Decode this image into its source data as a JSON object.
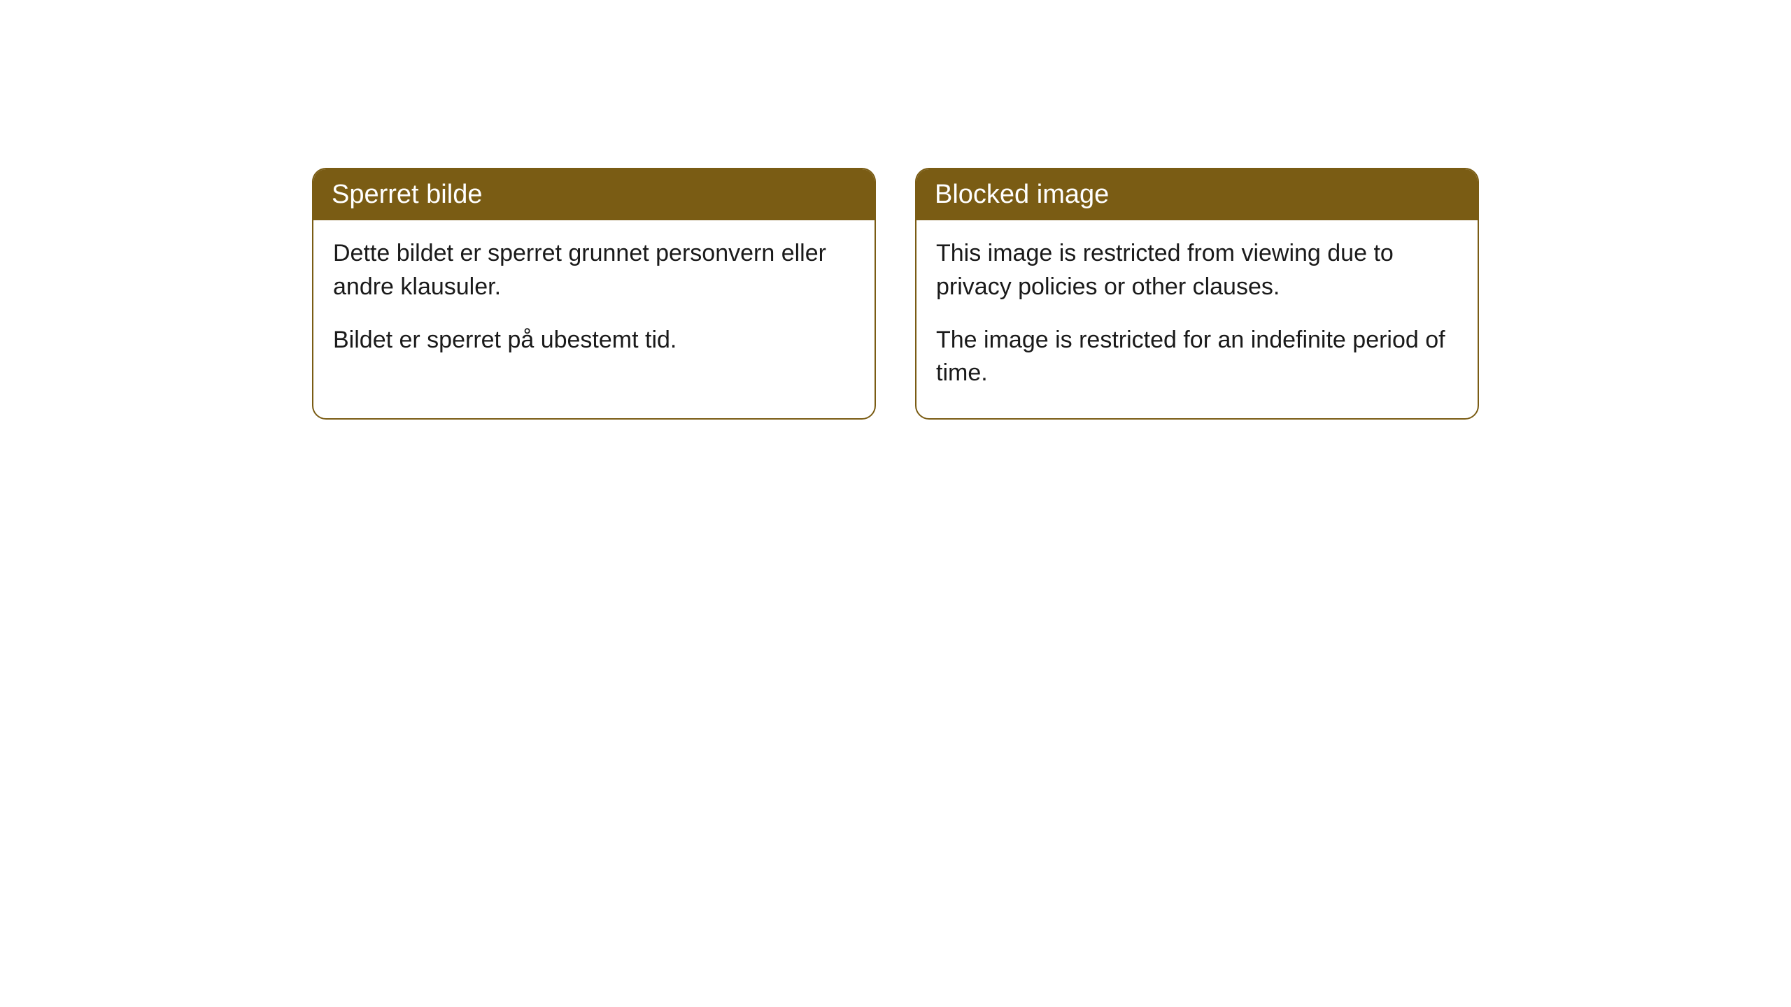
{
  "cards": [
    {
      "title": "Sperret bilde",
      "paragraph1": "Dette bildet er sperret grunnet personvern eller andre klausuler.",
      "paragraph2": "Bildet er sperret på ubestemt tid."
    },
    {
      "title": "Blocked image",
      "paragraph1": "This image is restricted from viewing due to privacy policies or other clauses.",
      "paragraph2": "The image is restricted for an indefinite period of time."
    }
  ],
  "styling": {
    "header_bg_color": "#7a5c14",
    "header_text_color": "#ffffff",
    "border_color": "#7a5c14",
    "body_text_color": "#1a1a1a",
    "card_bg_color": "#ffffff",
    "page_bg_color": "#ffffff",
    "border_radius": 20,
    "header_fontsize": 38,
    "body_fontsize": 34
  }
}
